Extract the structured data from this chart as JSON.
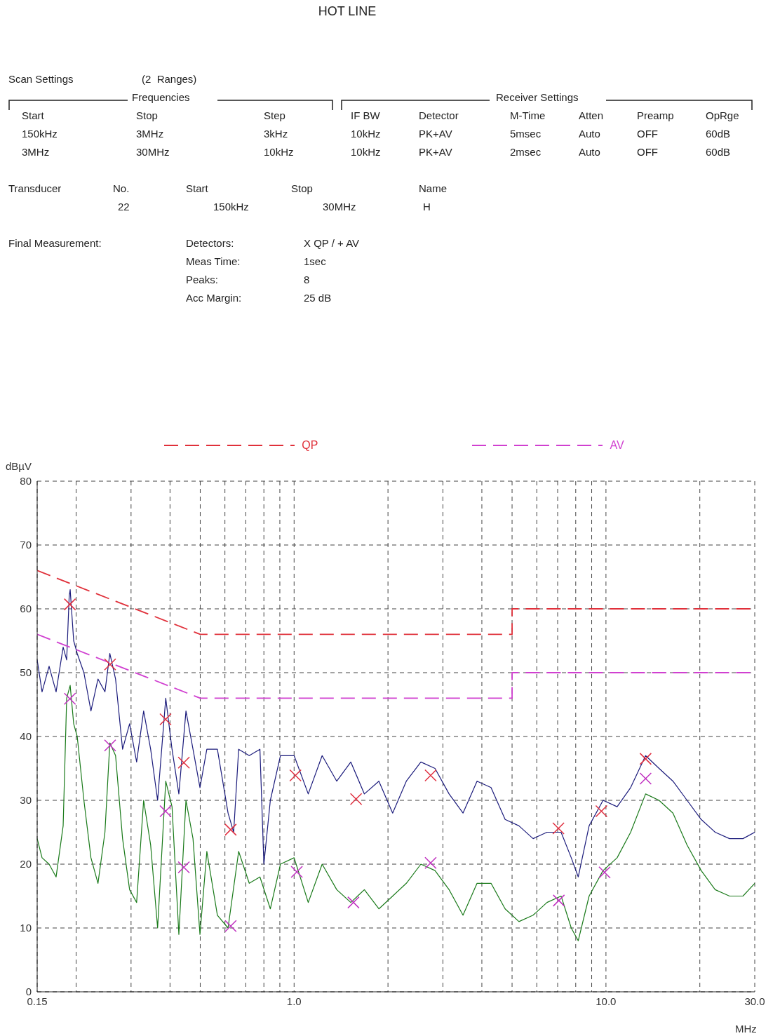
{
  "chart_data": {
    "type": "line",
    "title": "HOT LINE",
    "xlabel": "MHz",
    "ylabel": "dBµV",
    "annotations": [
      "Scan Settings",
      "(2  Ranges)",
      "Frequencies",
      "Receiver Settings",
      "Start",
      "Stop",
      "Step",
      "IF BW",
      "Detector",
      "M-Time",
      "Atten",
      "Preamp",
      "OpRge",
      "150kHz",
      "3MHz",
      "3kHz",
      "10kHz",
      "PK+AV",
      "5msec",
      "Auto",
      "OFF",
      "60dB",
      "3MHz",
      "30MHz",
      "10kHz",
      "10kHz",
      "PK+AV",
      "2msec",
      "Auto",
      "OFF",
      "60dB",
      "Transducer",
      "No.",
      "Start",
      "Stop",
      "Name",
      "22",
      "150kHz",
      "30MHz",
      "H",
      "Final Measurement:",
      "Detectors:",
      "X QP / + AV",
      "Meas Time:",
      "1sec",
      "Peaks:",
      "8",
      "Acc Margin:",
      "25 dB"
    ],
    "log": "x",
    "grid": true,
    "legend": "top",
    "xlim": [
      0.15,
      30
    ],
    "xticks": [
      0.15,
      {
        "value": 0.2,
        "label": null
      },
      {
        "value": 0.3,
        "label": null
      },
      {
        "value": 0.4,
        "label": null
      },
      {
        "value": 0.5,
        "label": null
      },
      {
        "value": 0.6,
        "label": null
      },
      {
        "value": 0.7,
        "label": null
      },
      {
        "value": 0.8,
        "label": null
      },
      {
        "value": 0.9,
        "label": null
      },
      {
        "value": 1,
        "label": "1.0"
      },
      {
        "value": 2,
        "label": null
      },
      {
        "value": 3,
        "label": null
      },
      {
        "value": 4,
        "label": null
      },
      {
        "value": 5,
        "label": null
      },
      {
        "value": 6,
        "label": null
      },
      {
        "value": 7,
        "label": null
      },
      {
        "value": 8,
        "label": null
      },
      {
        "value": 9,
        "label": null
      },
      {
        "value": 10,
        "label": "10.0"
      },
      {
        "value": 20,
        "label": null
      },
      {
        "value": 30,
        "label": "30.0"
      }
    ],
    "ylim": [
      0,
      80
    ],
    "yticks": [
      0,
      10,
      20,
      30,
      40,
      50,
      60,
      70,
      80
    ],
    "series": [
      {
        "color": "#1c1c7c",
        "marker": "none",
        "line_style": "solid",
        "x": [
          0.15,
          0.1555,
          0.1638,
          0.1725,
          0.1817,
          0.1865,
          0.19,
          0.1914,
          0.1964,
          0.2016,
          0.2118,
          0.2231,
          0.235,
          0.2474,
          0.2565,
          0.2676,
          0.2818,
          0.2968,
          0.3126,
          0.3292,
          0.3467,
          0.365,
          0.3876,
          0.406,
          0.427,
          0.45,
          0.474,
          0.499,
          0.525,
          0.5675,
          0.614,
          0.64,
          0.664,
          0.718,
          0.777,
          0.8,
          0.839,
          0.904,
          1.0,
          1.11,
          1.23,
          1.37,
          1.52,
          1.68,
          1.87,
          2.07,
          2.29,
          2.55,
          2.83,
          3.14,
          3.48,
          3.86,
          4.28,
          4.75,
          5.26,
          5.84,
          6.47,
          7.18,
          7.74,
          8.15,
          8.83,
          9.79,
          10.86,
          12.0,
          13.4,
          14.8,
          16.4,
          18.2,
          20.2,
          22.4,
          24.9,
          27.5,
          30
        ],
        "values": [
          52,
          47,
          51,
          47,
          54,
          52,
          62,
          63,
          55,
          53,
          50,
          44,
          49,
          47,
          53,
          49,
          38,
          42,
          36,
          44,
          38,
          30,
          46,
          38,
          31,
          44,
          38,
          32,
          38,
          38,
          28,
          25,
          38,
          37,
          38,
          20,
          30,
          37,
          37,
          31,
          37,
          33,
          36,
          31,
          33,
          28,
          33,
          36,
          35,
          31,
          28,
          33,
          32,
          27,
          26,
          24,
          25,
          25,
          21,
          18,
          26,
          30,
          29,
          32,
          37,
          35,
          33,
          30,
          27,
          25,
          24,
          24,
          25
        ]
      },
      {
        "color": "#1a7a1a",
        "marker": "none",
        "line_style": "solid",
        "x": [
          0.15,
          0.1555,
          0.1638,
          0.1725,
          0.1817,
          0.1865,
          0.1914,
          0.1964,
          0.2016,
          0.2118,
          0.2231,
          0.235,
          0.2474,
          0.2565,
          0.2676,
          0.2818,
          0.2968,
          0.3126,
          0.3292,
          0.3467,
          0.365,
          0.3876,
          0.406,
          0.427,
          0.45,
          0.474,
          0.499,
          0.525,
          0.5675,
          0.614,
          0.664,
          0.718,
          0.777,
          0.839,
          0.904,
          1.0,
          1.11,
          1.23,
          1.37,
          1.52,
          1.68,
          1.87,
          2.07,
          2.29,
          2.55,
          2.83,
          3.14,
          3.48,
          3.86,
          4.28,
          4.75,
          5.26,
          5.84,
          6.47,
          7.18,
          7.74,
          8.15,
          8.83,
          9.79,
          10.86,
          12.0,
          13.4,
          14.8,
          16.4,
          18.2,
          20.2,
          22.4,
          24.9,
          27.5,
          30
        ],
        "values": [
          24,
          21,
          20,
          18,
          26,
          46,
          48,
          42,
          40,
          30,
          21,
          17,
          25,
          39,
          37,
          24,
          16,
          14,
          30,
          23,
          10,
          33,
          29,
          9,
          30,
          24,
          9,
          22,
          12,
          10,
          22,
          17,
          18,
          13,
          20,
          21,
          14,
          20,
          16,
          14,
          16,
          13,
          15,
          17,
          20,
          19,
          16,
          12,
          17,
          17,
          13,
          11,
          12,
          14,
          15,
          10,
          8,
          15,
          19,
          21,
          25,
          31,
          30,
          28,
          23,
          19,
          16,
          15,
          15,
          17
        ]
      },
      {
        "name": "QP",
        "color": "#e0303a",
        "marker": "none",
        "line_style": "dashed",
        "x": [
          0.15,
          0.5,
          5,
          5,
          30
        ],
        "values": [
          66,
          56,
          56,
          60,
          60
        ]
      },
      {
        "name": "AV",
        "color": "#d040d0",
        "marker": "none",
        "line_style": "dashed",
        "x": [
          0.15,
          0.5,
          5,
          5,
          30
        ],
        "values": [
          56,
          46,
          46,
          50,
          50
        ]
      },
      {
        "type": "scatter",
        "color": "#e03040",
        "marker": "cross",
        "x": [
          0.191,
          0.257,
          0.387,
          0.443,
          0.626,
          1.01,
          1.58,
          2.74,
          7.04,
          9.67,
          13.4
        ],
        "values": [
          60.7,
          51.3,
          42.7,
          35.9,
          25.4,
          33.9,
          30.2,
          33.9,
          25.6,
          28.3,
          36.5
        ]
      },
      {
        "type": "scatter",
        "color": "#c030c0",
        "marker": "cross",
        "x": [
          0.191,
          0.257,
          0.387,
          0.443,
          0.626,
          1.02,
          1.55,
          2.74,
          7.06,
          9.9,
          13.4
        ],
        "values": [
          45.9,
          38.6,
          28.3,
          19.5,
          10.3,
          18.8,
          14.0,
          20.2,
          14.3,
          18.7,
          33.4
        ]
      }
    ]
  }
}
